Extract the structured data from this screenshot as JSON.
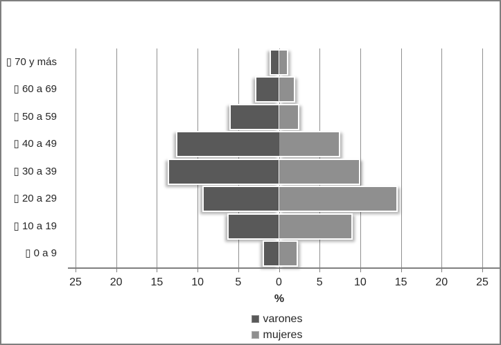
{
  "chart_data": {
    "type": "bar",
    "subtype": "population-pyramid",
    "title": "",
    "categories": [
      "70 y más",
      "60 a 69",
      "50 a 59",
      "40 a 49",
      "30 a 39",
      "20 a 29",
      "10 a 19",
      "0 a 9"
    ],
    "category_prefix_glyph": "▯",
    "series": [
      {
        "name": "varones",
        "side": "left",
        "color": "#595959",
        "values": [
          1.0,
          2.8,
          5.9,
          12.5,
          13.5,
          9.2,
          6.2,
          1.8
        ]
      },
      {
        "name": "mujeres",
        "side": "right",
        "color": "#8f8f8f",
        "values": [
          1.0,
          1.8,
          2.3,
          7.4,
          9.8,
          14.4,
          8.9,
          2.2
        ]
      }
    ],
    "xlabel": "%",
    "x_tick_labels": [
      "25",
      "20",
      "15",
      "10",
      "5",
      "0",
      "5",
      "10",
      "15",
      "20",
      "25"
    ],
    "xlim": [
      -25,
      25
    ],
    "x_tick_step": 5,
    "grid": true,
    "legend_position": "bottom",
    "colors": {
      "gridline": "#8f8f8f",
      "axis_line": "#7f7f7f",
      "chart_border": "#7f7f7f",
      "text": "#262626"
    }
  }
}
